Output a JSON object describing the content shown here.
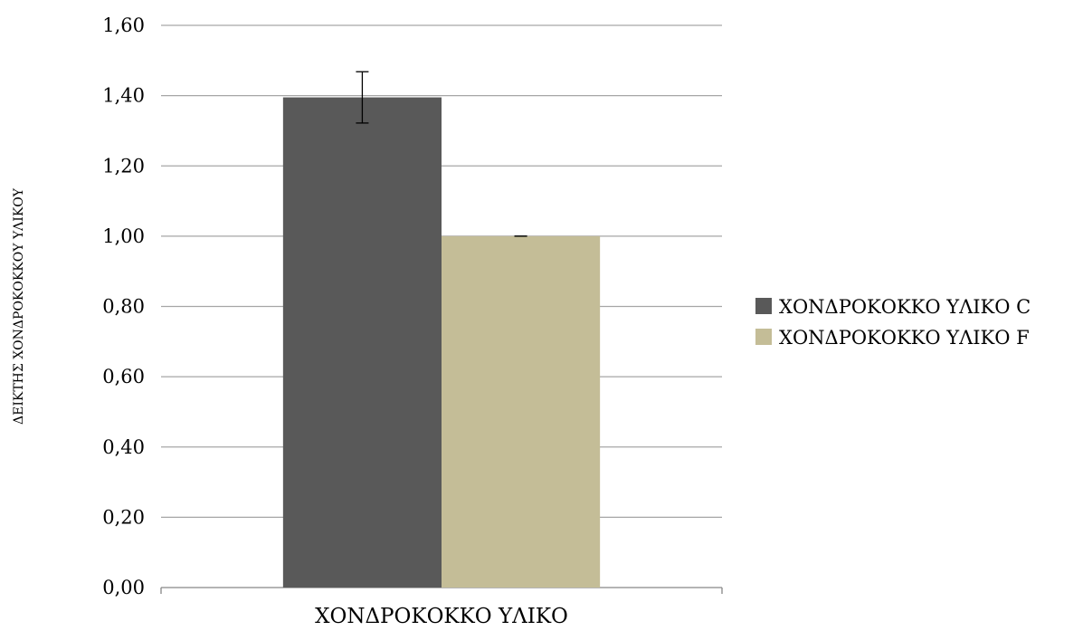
{
  "chart_data": {
    "type": "bar",
    "title": "",
    "categories": [
      "ΧΟΝΔΡΟΚΟΚΚΟ ΥΛΙΚΟ"
    ],
    "xlabel": "ΧΟΝΔΡΟΚΟΚΚΟ ΥΛΙΚΟ",
    "ylabel": "ΔΕΙΚΤΗΣ ΧΟΝΔΡΟΚΟΚΚΟΥ ΥΛΙΚΟΥ",
    "ylim": [
      0,
      1.6
    ],
    "yticks": [
      "0,00",
      "0,20",
      "0,40",
      "0,60",
      "0,80",
      "1,00",
      "1,20",
      "1,40",
      "1,60"
    ],
    "grid": true,
    "legend_position": "right",
    "series": [
      {
        "name": "ΧΟΝΔΡΟΚΟΚΚΟ ΥΛΙΚΟ C",
        "values": [
          1.395
        ],
        "error": [
          0.073
        ],
        "color": "#595959"
      },
      {
        "name": "ΧΟΝΔΡΟΚΟΚΚΟ ΥΛΙΚΟ F",
        "values": [
          1.0
        ],
        "error": [
          0.0
        ],
        "color": "#c4bd97"
      }
    ]
  }
}
